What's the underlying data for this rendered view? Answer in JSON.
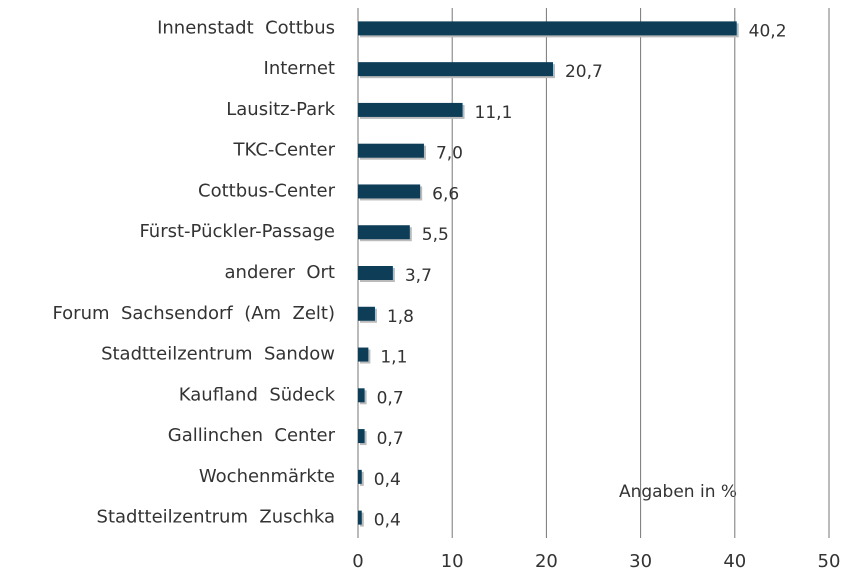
{
  "chart_data": {
    "type": "barh",
    "categories": [
      "Innenstadt  Cottbus",
      "Internet",
      "Lausitz-Park",
      "TKC-Center",
      "Cottbus-Center",
      "Fürst-Pückler-Passage",
      "anderer  Ort",
      "Forum  Sachsendorf  (Am  Zelt)",
      "Stadtteilzentrum  Sandow",
      "Kaufland  Südeck",
      "Gallinchen  Center",
      "Wochenmärkte",
      "Stadtteilzentrum  Zuschka"
    ],
    "values": [
      40.2,
      20.7,
      11.1,
      7.0,
      6.6,
      5.5,
      3.7,
      1.8,
      1.1,
      0.7,
      0.7,
      0.4,
      0.4
    ],
    "value_labels": [
      "40,2",
      "20,7",
      "11,1",
      "7,0",
      "6,6",
      "5,5",
      "3,7",
      "1,8",
      "1,1",
      "0,7",
      "0,7",
      "0,4",
      "0,4"
    ],
    "color": "#0e3d58",
    "xlim": [
      0,
      50
    ],
    "xticks": [
      0,
      10,
      20,
      30,
      40,
      50
    ],
    "grid": true,
    "annotation": "Angaben in %"
  }
}
